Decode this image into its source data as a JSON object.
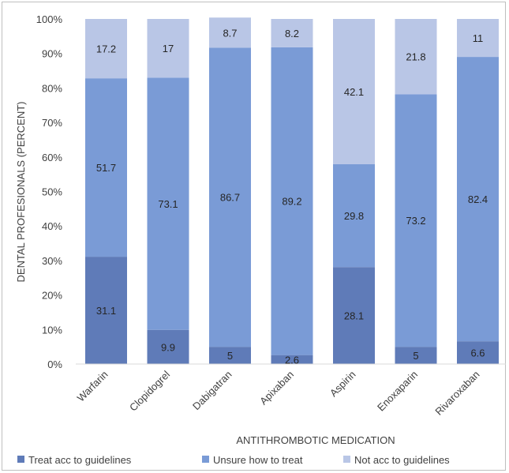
{
  "chart_data": {
    "type": "bar",
    "stacked": true,
    "categories": [
      "Warfarin",
      "Clopidogrel",
      "Dabigatran",
      "Apixaban",
      "Aspirin",
      "Enoxaparin",
      "Rivaroxaban"
    ],
    "series": [
      {
        "name": "Treat acc to guidelines",
        "color": "#5f7bb8",
        "values": [
          31.1,
          9.9,
          5,
          2.6,
          28.1,
          5,
          6.6
        ]
      },
      {
        "name": "Unsure how to treat",
        "color": "#7a9bd6",
        "values": [
          51.7,
          73.1,
          86.7,
          89.2,
          29.8,
          73.2,
          82.4
        ]
      },
      {
        "name": "Not acc to guidelines",
        "color": "#b9c6e6",
        "values": [
          17.2,
          17,
          8.7,
          8.2,
          42.1,
          21.8,
          11
        ]
      }
    ],
    "ylabel": "DENTAL PROFESIONALS (PERCENT)",
    "xlabel": "ANTITHROMBOTIC MEDICATION",
    "ylim": [
      0,
      100
    ],
    "yticks": [
      "0%",
      "10%",
      "20%",
      "30%",
      "40%",
      "50%",
      "60%",
      "70%",
      "80%",
      "90%",
      "100%"
    ],
    "grid": false,
    "legend_position": "bottom"
  }
}
